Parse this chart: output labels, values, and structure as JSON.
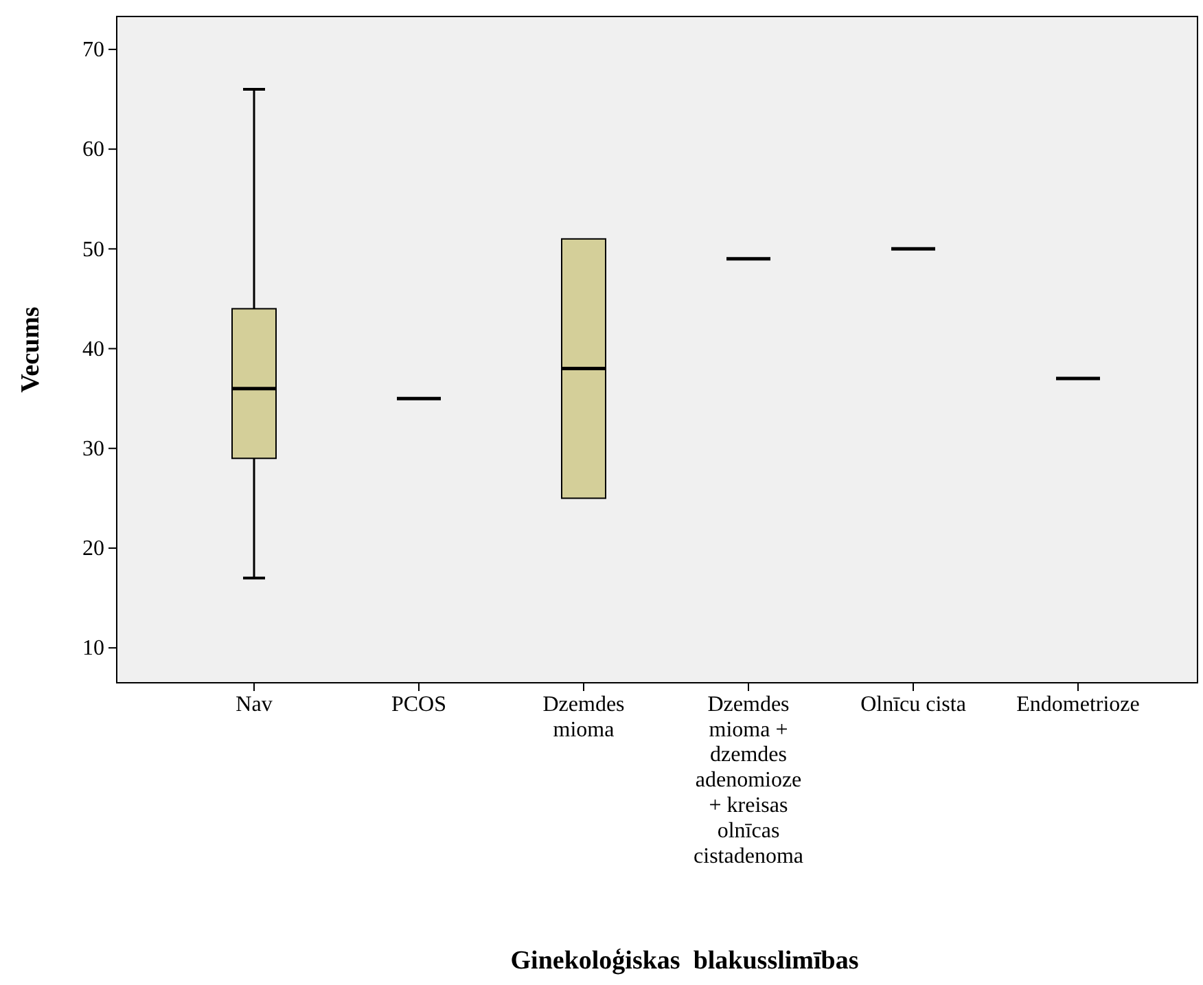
{
  "chart_data": {
    "type": "box",
    "xlabel": "Ginekoloģiskas  blakusslimības",
    "ylabel": "Vecums",
    "categories": [
      "Nav",
      "PCOS",
      "Dzemdes mioma",
      "Dzemdes mioma + dzemdes adenomioze + kreisas olnīcas cistadenoma",
      "Olnīcu cista",
      "Endometrioze"
    ],
    "boxes": [
      {
        "low": 17,
        "q1": 29,
        "median": 36,
        "q3": 44,
        "high": 66
      },
      {
        "low": 35,
        "q1": 35,
        "median": 35,
        "q3": 35,
        "high": 35
      },
      {
        "low": 25,
        "q1": 25,
        "median": 38,
        "q3": 51,
        "high": 51
      },
      {
        "low": 49,
        "q1": 49,
        "median": 49,
        "q3": 49,
        "high": 49
      },
      {
        "low": 50,
        "q1": 50,
        "median": 50,
        "q3": 50,
        "high": 50
      },
      {
        "low": 37,
        "q1": 37,
        "median": 37,
        "q3": 37,
        "high": 37
      }
    ],
    "colors": [
      "#d4cf99",
      "#000000",
      "#d4cf99",
      "#000000",
      "#000000",
      "#000000"
    ],
    "ylim": [
      6.5,
      73.3
    ],
    "yticks": [
      10,
      20,
      30,
      40,
      50,
      60,
      70
    ],
    "grid": false
  }
}
